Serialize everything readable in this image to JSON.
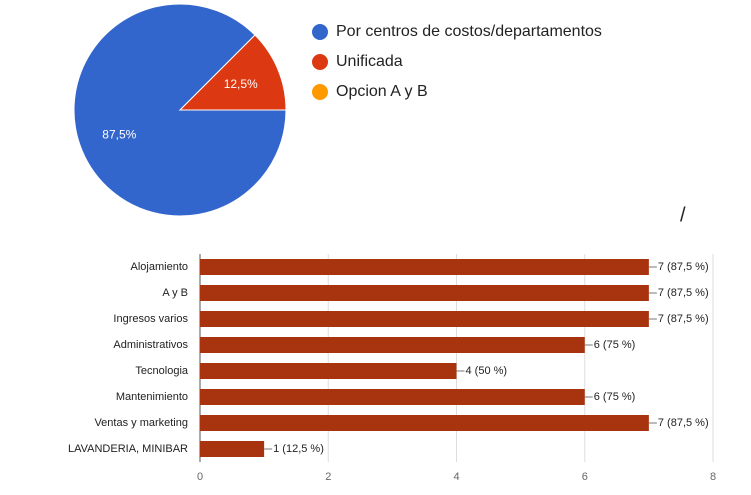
{
  "chart_data": [
    {
      "type": "pie",
      "categories": [
        "Por centros de costos/departamentos",
        "Unificada",
        "Opcion A y B"
      ],
      "values": [
        87.5,
        12.5,
        0
      ],
      "value_labels": [
        "87,5%",
        "12,5%",
        null
      ],
      "colors": [
        "#3366cc",
        "#dc3912",
        "#ff9900"
      ],
      "legend": "right"
    },
    {
      "type": "hbar",
      "annotation": "/",
      "categories": [
        "Alojamiento",
        "A y B",
        "Ingresos varios",
        "Administrativos",
        "Tecnologia",
        "Mantenimiento",
        "Ventas y marketing",
        "LAVANDERIA, MINIBAR"
      ],
      "values": [
        7,
        7,
        7,
        6,
        4,
        6,
        7,
        1
      ],
      "value_labels": [
        "7 (87,5 %)",
        "7 (87,5 %)",
        "7 (87,5 %)",
        "6 (75 %)",
        "4 (50 %)",
        "6 (75 %)",
        "7 (87,5 %)",
        "1 (12,5 %)"
      ],
      "color": "#a8330f",
      "xlim": [
        0,
        8
      ],
      "xticks": [
        0,
        2,
        4,
        6,
        8
      ],
      "grid": true
    }
  ]
}
